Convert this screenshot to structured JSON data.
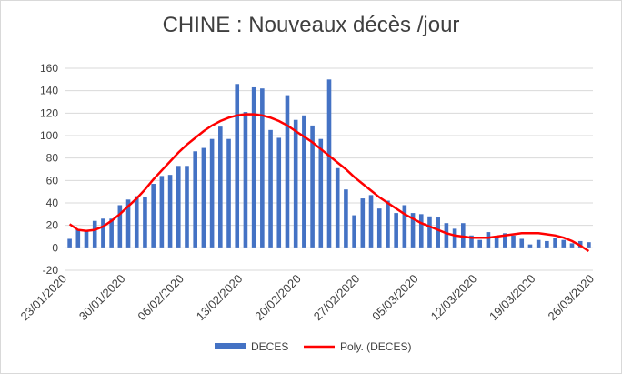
{
  "chart_data": {
    "type": "bar",
    "title": "CHINE : Nouveaux décès /jour",
    "xlabel": "",
    "ylabel": "",
    "ylim": [
      -20,
      160
    ],
    "yticks": [
      -20,
      0,
      20,
      40,
      60,
      80,
      100,
      120,
      140,
      160
    ],
    "grid": true,
    "legend_position": "bottom",
    "x_start": "23/01/2020",
    "x_tick_labels": [
      "23/01/2020",
      "30/01/2020",
      "06/02/2020",
      "13/02/2020",
      "20/02/2020",
      "27/02/2020",
      "05/03/2020",
      "12/03/2020",
      "19/03/2020",
      "26/03/2020"
    ],
    "series": [
      {
        "name": "DECES",
        "kind": "bar",
        "color": "#4472c4",
        "values": [
          8,
          16,
          15,
          24,
          26,
          26,
          38,
          43,
          46,
          45,
          57,
          64,
          65,
          73,
          73,
          86,
          89,
          97,
          108,
          97,
          146,
          121,
          143,
          142,
          105,
          98,
          136,
          114,
          118,
          109,
          97,
          150,
          71,
          52,
          29,
          44,
          47,
          35,
          42,
          31,
          38,
          31,
          30,
          28,
          27,
          22,
          17,
          22,
          11,
          7,
          14,
          10,
          13,
          11,
          8,
          3,
          7,
          6,
          9,
          7,
          4,
          6,
          5
        ]
      },
      {
        "name": "Poly. (DECES)",
        "kind": "trendline",
        "color": "#ff0000",
        "values": [
          21,
          16,
          15,
          16,
          19,
          24,
          30,
          37,
          44,
          52,
          61,
          69,
          77,
          85,
          92,
          98,
          104,
          109,
          113,
          116,
          118,
          119,
          119,
          118,
          116,
          113,
          109,
          104,
          99,
          94,
          88,
          82,
          76,
          70,
          63,
          57,
          51,
          45,
          40,
          35,
          30,
          26,
          22,
          19,
          16,
          13,
          11,
          10,
          9,
          9,
          9,
          10,
          11,
          12,
          13,
          13,
          13,
          12,
          11,
          9,
          6,
          2,
          -3
        ]
      }
    ]
  }
}
